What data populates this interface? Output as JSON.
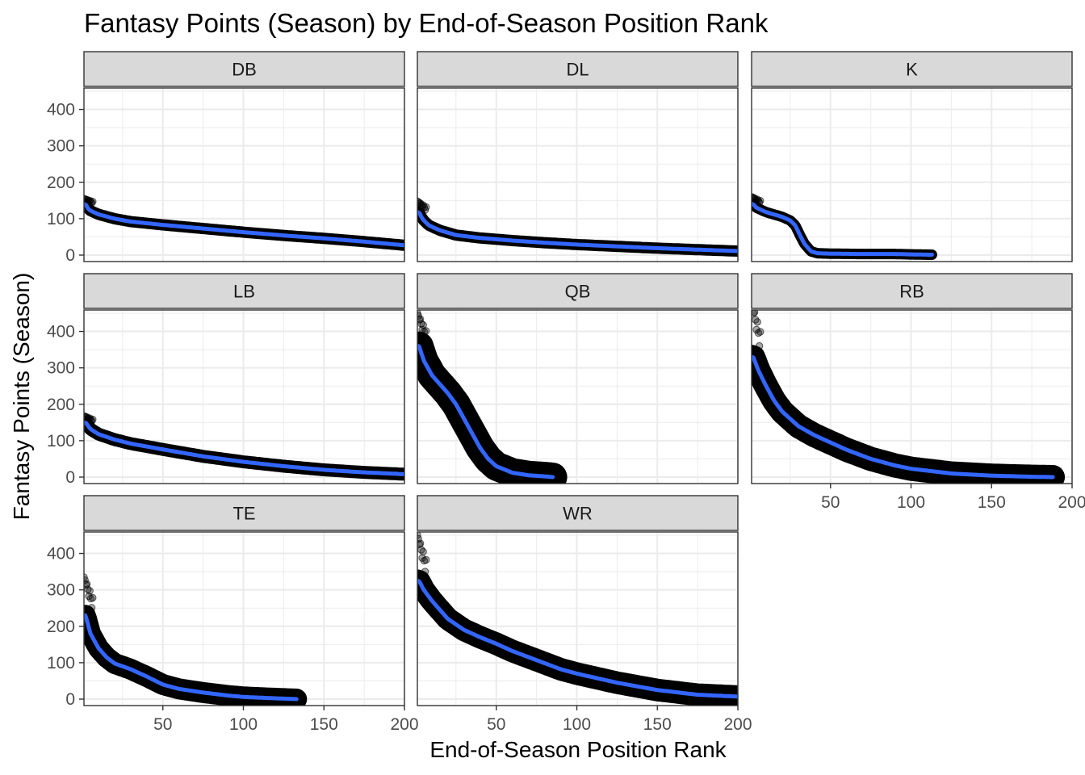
{
  "chart_data": {
    "type": "scatter",
    "title": "Fantasy Points (Season) by End-of-Season Position Rank",
    "xlabel": "End-of-Season Position Rank",
    "ylabel": "Fantasy Points (Season)",
    "xlim": [
      1,
      200
    ],
    "ylim": [
      0,
      450
    ],
    "x_ticks": [
      50,
      100,
      150,
      200
    ],
    "y_ticks": [
      0,
      100,
      200,
      300,
      400
    ],
    "grid": true,
    "smooth_color": "#3366ff",
    "point_color": "#000000",
    "panels": [
      {
        "name": "DB",
        "band": 14,
        "points": [
          [
            1,
            155
          ],
          [
            2,
            140
          ],
          [
            3,
            130
          ],
          [
            5,
            122
          ],
          [
            10,
            112
          ],
          [
            20,
            100
          ],
          [
            30,
            92
          ],
          [
            50,
            83
          ],
          [
            75,
            73
          ],
          [
            100,
            63
          ],
          [
            125,
            54
          ],
          [
            150,
            46
          ],
          [
            175,
            37
          ],
          [
            200,
            27
          ]
        ]
      },
      {
        "name": "DL",
        "band": 14,
        "points": [
          [
            1,
            148
          ],
          [
            2,
            118
          ],
          [
            4,
            100
          ],
          [
            8,
            82
          ],
          [
            15,
            68
          ],
          [
            25,
            55
          ],
          [
            40,
            47
          ],
          [
            60,
            40
          ],
          [
            80,
            34
          ],
          [
            100,
            29
          ],
          [
            125,
            24
          ],
          [
            150,
            19
          ],
          [
            175,
            15
          ],
          [
            200,
            11
          ]
        ]
      },
      {
        "name": "K",
        "band": 13,
        "points": [
          [
            1,
            160
          ],
          [
            2,
            140
          ],
          [
            4,
            130
          ],
          [
            10,
            118
          ],
          [
            20,
            105
          ],
          [
            25,
            95
          ],
          [
            28,
            82
          ],
          [
            31,
            55
          ],
          [
            34,
            30
          ],
          [
            38,
            10
          ],
          [
            42,
            5
          ],
          [
            50,
            4
          ],
          [
            70,
            3
          ],
          [
            90,
            3
          ],
          [
            100,
            2
          ],
          [
            113,
            1
          ]
        ]
      },
      {
        "name": "LB",
        "band": 16,
        "points": [
          [
            1,
            168
          ],
          [
            2,
            150
          ],
          [
            5,
            132
          ],
          [
            10,
            118
          ],
          [
            20,
            103
          ],
          [
            30,
            92
          ],
          [
            50,
            76
          ],
          [
            75,
            57
          ],
          [
            100,
            42
          ],
          [
            125,
            30
          ],
          [
            150,
            20
          ],
          [
            175,
            13
          ],
          [
            200,
            8
          ]
        ]
      },
      {
        "name": "QB",
        "band": 36,
        "points": [
          [
            1,
            450
          ],
          [
            2,
            360
          ],
          [
            5,
            320
          ],
          [
            10,
            280
          ],
          [
            15,
            255
          ],
          [
            20,
            230
          ],
          [
            25,
            200
          ],
          [
            30,
            160
          ],
          [
            35,
            120
          ],
          [
            40,
            80
          ],
          [
            45,
            50
          ],
          [
            50,
            30
          ],
          [
            60,
            12
          ],
          [
            70,
            5
          ],
          [
            80,
            2
          ],
          [
            85,
            0
          ]
        ]
      },
      {
        "name": "RB",
        "band": 30,
        "points": [
          [
            1,
            480
          ],
          [
            2,
            330
          ],
          [
            5,
            295
          ],
          [
            10,
            250
          ],
          [
            15,
            210
          ],
          [
            20,
            180
          ],
          [
            30,
            140
          ],
          [
            40,
            115
          ],
          [
            50,
            95
          ],
          [
            60,
            75
          ],
          [
            75,
            50
          ],
          [
            90,
            32
          ],
          [
            100,
            23
          ],
          [
            125,
            10
          ],
          [
            150,
            4
          ],
          [
            175,
            1
          ],
          [
            188,
            0
          ]
        ]
      },
      {
        "name": "TE",
        "band": 26,
        "points": [
          [
            1,
            335
          ],
          [
            2,
            230
          ],
          [
            5,
            180
          ],
          [
            10,
            140
          ],
          [
            15,
            115
          ],
          [
            20,
            98
          ],
          [
            30,
            82
          ],
          [
            40,
            62
          ],
          [
            50,
            40
          ],
          [
            60,
            28
          ],
          [
            75,
            18
          ],
          [
            90,
            10
          ],
          [
            100,
            6
          ],
          [
            115,
            3
          ],
          [
            133,
            0
          ]
        ]
      },
      {
        "name": "WR",
        "band": 28,
        "points": [
          [
            1,
            450
          ],
          [
            2,
            325
          ],
          [
            5,
            300
          ],
          [
            10,
            270
          ],
          [
            15,
            245
          ],
          [
            20,
            220
          ],
          [
            30,
            190
          ],
          [
            40,
            170
          ],
          [
            50,
            152
          ],
          [
            60,
            132
          ],
          [
            75,
            107
          ],
          [
            90,
            82
          ],
          [
            100,
            70
          ],
          [
            125,
            45
          ],
          [
            150,
            25
          ],
          [
            175,
            12
          ],
          [
            200,
            7
          ]
        ]
      }
    ]
  }
}
